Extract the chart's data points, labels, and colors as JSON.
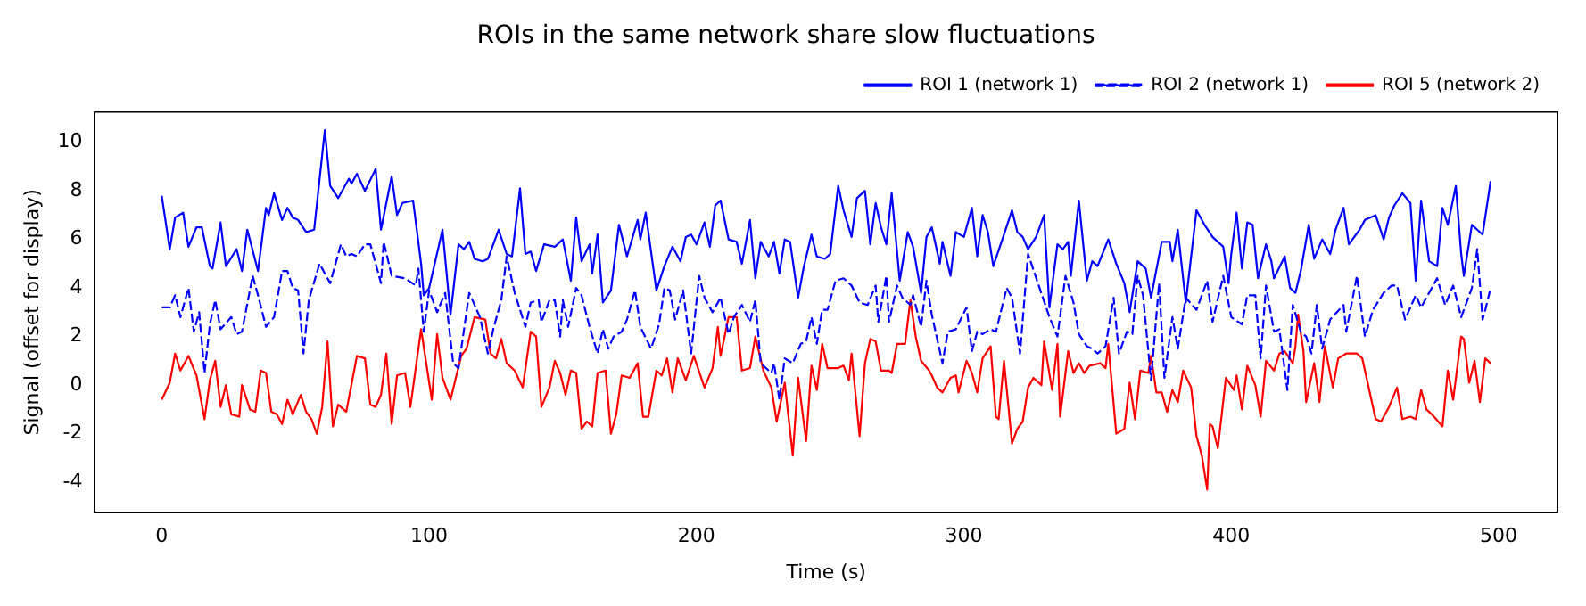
{
  "chart_data": {
    "type": "line",
    "title": "ROIs in the same network share slow fluctuations",
    "xlabel": "Time (s)",
    "ylabel": "Signal (offset for display)",
    "xlim": [
      -25,
      522
    ],
    "xticks": [
      0,
      100,
      200,
      300,
      400,
      500
    ],
    "ylim": [
      -5.25,
      11.25
    ],
    "yticks": [
      -4,
      -2,
      0,
      2,
      4,
      6,
      8,
      10
    ],
    "legend": "top right",
    "marker": "none",
    "series": [
      {
        "name": "ROI 1 (network 1)",
        "color": "#0000ff",
        "line_style": "solid",
        "x": [
          0,
          3,
          5,
          8,
          10,
          13,
          15,
          18,
          19,
          22,
          24,
          28,
          30,
          32,
          36,
          39,
          40,
          42,
          45,
          47,
          49,
          51,
          54,
          57,
          61,
          63,
          66,
          70,
          71,
          73,
          76,
          80,
          82,
          86,
          88,
          90,
          94,
          97,
          98,
          100,
          105,
          108,
          111,
          113,
          115,
          117,
          120,
          122,
          124,
          126,
          129,
          131,
          134,
          136,
          138,
          140,
          143,
          147,
          150,
          153,
          155,
          157,
          160,
          161,
          163,
          165,
          168,
          171,
          174,
          178,
          179,
          181,
          185,
          188,
          191,
          194,
          196,
          198,
          200,
          203,
          205,
          207,
          209,
          212,
          215,
          217,
          220,
          222,
          224,
          227,
          229,
          231,
          233,
          235,
          238,
          240,
          243,
          245,
          248,
          250,
          253,
          255,
          258,
          260,
          263,
          265,
          267,
          269,
          271,
          273,
          276,
          279,
          281,
          284,
          286,
          288,
          291,
          292,
          295,
          297,
          300,
          303,
          305,
          307,
          309,
          311,
          315,
          318,
          320,
          322,
          324,
          327,
          330,
          332,
          335,
          337,
          339,
          340,
          343,
          346,
          348,
          350,
          354,
          357,
          360,
          362,
          365,
          368,
          370,
          374,
          377,
          378,
          380,
          383,
          387,
          390,
          393,
          397,
          399,
          400,
          402,
          404,
          406,
          408,
          410,
          413,
          415,
          416,
          420,
          422,
          424,
          426,
          429,
          431,
          434,
          437,
          439,
          442,
          444,
          448,
          450,
          454,
          457,
          459,
          461,
          464,
          467,
          469,
          471,
          474,
          477,
          479,
          481,
          484,
          486,
          487,
          490,
          492,
          494,
          497
        ],
        "values": [
          7.8,
          5.6,
          6.9,
          7.1,
          5.7,
          6.5,
          6.5,
          4.9,
          4.8,
          6.7,
          4.9,
          5.6,
          4.7,
          6.4,
          4.7,
          7.3,
          7.0,
          7.9,
          6.8,
          7.3,
          6.9,
          6.8,
          6.3,
          6.4,
          10.5,
          8.2,
          7.7,
          8.5,
          8.3,
          8.7,
          8.0,
          8.9,
          6.4,
          8.6,
          7.0,
          7.5,
          7.6,
          5.0,
          3.7,
          4.0,
          6.4,
          2.9,
          5.8,
          5.6,
          5.9,
          5.2,
          5.1,
          5.2,
          5.8,
          6.4,
          5.4,
          5.3,
          8.1,
          5.4,
          5.5,
          4.7,
          5.8,
          5.7,
          6.0,
          4.3,
          6.9,
          5.1,
          5.8,
          4.6,
          6.2,
          3.4,
          3.9,
          6.6,
          5.3,
          6.8,
          6.0,
          7.1,
          3.9,
          4.9,
          5.7,
          5.1,
          6.1,
          6.2,
          5.8,
          6.7,
          5.7,
          7.4,
          7.6,
          6.0,
          5.9,
          5.0,
          6.8,
          4.4,
          5.9,
          5.3,
          5.9,
          4.6,
          6.0,
          5.9,
          3.6,
          4.8,
          6.2,
          5.3,
          5.2,
          5.4,
          8.2,
          7.2,
          6.1,
          7.7,
          8.0,
          5.8,
          7.5,
          6.5,
          5.8,
          7.9,
          4.3,
          6.3,
          5.7,
          3.8,
          6.1,
          6.5,
          5.0,
          5.9,
          4.5,
          6.3,
          6.1,
          7.3,
          5.3,
          7.0,
          6.3,
          4.9,
          6.2,
          7.2,
          6.3,
          6.1,
          5.6,
          6.1,
          7.0,
          3.2,
          5.8,
          5.6,
          5.9,
          4.5,
          7.6,
          4.3,
          5.1,
          4.9,
          6.0,
          5.0,
          4.2,
          3.0,
          5.1,
          4.8,
          3.6,
          5.9,
          5.9,
          5.1,
          6.4,
          3.4,
          7.2,
          6.6,
          6.1,
          5.7,
          4.2,
          5.4,
          7.1,
          4.8,
          6.7,
          6.6,
          4.4,
          5.8,
          5.1,
          4.4,
          5.3,
          4.0,
          3.8,
          4.7,
          6.6,
          5.2,
          6.0,
          5.4,
          6.4,
          7.3,
          5.8,
          6.4,
          6.8,
          7.0,
          6.0,
          6.9,
          7.4,
          7.9,
          7.5,
          4.3,
          7.6,
          5.1,
          4.9,
          7.3,
          6.6,
          8.2,
          5.4,
          4.5,
          6.6,
          6.4,
          6.2,
          8.4
        ]
      },
      {
        "name": "ROI 2 (network 1)",
        "color": "#0000ff",
        "line_style": "dashed",
        "x": [
          0,
          3,
          5,
          7,
          10,
          12,
          14,
          16,
          18,
          20,
          22,
          26,
          28,
          30,
          34,
          36,
          39,
          42,
          45,
          47,
          49,
          51,
          53,
          55,
          59,
          63,
          67,
          69,
          71,
          73,
          76,
          78,
          82,
          83,
          86,
          91,
          95,
          96,
          98,
          100,
          103,
          106,
          109,
          111,
          115,
          119,
          122,
          124,
          127,
          129,
          132,
          136,
          138,
          141,
          142,
          145,
          147,
          149,
          150,
          152,
          155,
          157,
          160,
          163,
          165,
          167,
          169,
          172,
          174,
          177,
          179,
          183,
          186,
          188,
          190,
          192,
          195,
          198,
          201,
          203,
          206,
          209,
          212,
          214,
          217,
          220,
          222,
          224,
          228,
          229,
          231,
          233,
          236,
          239,
          241,
          243,
          245,
          247,
          249,
          252,
          255,
          258,
          261,
          264,
          267,
          268,
          271,
          272,
          275,
          277,
          280,
          281,
          284,
          286,
          288,
          292,
          294,
          297,
          301,
          303,
          305,
          307,
          310,
          312,
          316,
          318,
          321,
          324,
          328,
          332,
          335,
          338,
          341,
          343,
          346,
          348,
          350,
          353,
          356,
          358,
          361,
          363,
          365,
          367,
          370,
          373,
          375,
          378,
          380,
          383,
          387,
          391,
          393,
          397,
          400,
          404,
          406,
          409,
          411,
          413,
          416,
          418,
          421,
          423,
          426,
          428,
          430,
          432,
          434,
          437,
          442,
          443,
          447,
          450,
          453,
          457,
          460,
          462,
          465,
          469,
          471,
          477,
          480,
          483,
          486,
          490,
          492,
          494,
          495,
          497
        ],
        "values": [
          3.2,
          3.2,
          3.7,
          2.8,
          4.0,
          2.2,
          3.0,
          0.5,
          2.5,
          3.5,
          2.3,
          2.8,
          2.1,
          2.2,
          4.5,
          3.7,
          2.4,
          2.8,
          4.7,
          4.7,
          4.0,
          3.9,
          1.3,
          3.5,
          5.0,
          4.2,
          5.8,
          5.3,
          5.4,
          5.3,
          5.8,
          5.8,
          4.2,
          5.9,
          4.5,
          4.4,
          4.1,
          4.8,
          2.2,
          3.9,
          3.0,
          3.8,
          0.9,
          0.7,
          3.8,
          2.8,
          1.3,
          2.3,
          3.5,
          5.3,
          3.8,
          2.4,
          3.4,
          3.5,
          2.6,
          3.5,
          3.5,
          2.0,
          3.5,
          2.4,
          4.0,
          3.7,
          2.4,
          1.3,
          2.3,
          1.5,
          2.0,
          2.2,
          2.7,
          3.9,
          2.4,
          1.5,
          2.5,
          4.0,
          3.9,
          2.7,
          3.9,
          1.3,
          4.5,
          3.6,
          3.0,
          3.6,
          2.1,
          2.8,
          3.3,
          2.6,
          3.5,
          0.9,
          0.5,
          0.9,
          -0.6,
          1.1,
          0.9,
          1.7,
          1.8,
          2.8,
          1.7,
          3.1,
          3.1,
          4.3,
          4.4,
          4.1,
          3.4,
          3.3,
          4.1,
          2.6,
          4.5,
          2.6,
          4.1,
          3.6,
          3.3,
          3.7,
          2.4,
          4.3,
          2.9,
          0.9,
          2.2,
          2.3,
          3.2,
          1.4,
          2.2,
          2.1,
          2.3,
          2.2,
          4.0,
          3.6,
          1.3,
          5.4,
          4.1,
          2.8,
          2.0,
          4.5,
          3.4,
          2.1,
          1.6,
          1.5,
          1.3,
          1.6,
          3.6,
          1.3,
          2.2,
          2.1,
          4.5,
          3.7,
          0.2,
          4.2,
          0.3,
          2.8,
          1.5,
          3.6,
          3.1,
          4.3,
          2.6,
          4.5,
          2.8,
          2.5,
          3.7,
          3.7,
          1.1,
          4.1,
          2.2,
          2.3,
          -0.2,
          3.3,
          2.2,
          2.0,
          1.3,
          3.3,
          1.5,
          2.7,
          3.3,
          2.2,
          4.5,
          2.0,
          3.1,
          3.8,
          4.1,
          4.1,
          2.7,
          3.7,
          3.2,
          4.4,
          3.3,
          4.1,
          2.8,
          4.0,
          5.6,
          2.7,
          3.1,
          4.0
        ]
      },
      {
        "name": "ROI 5 (network 2)",
        "color": "#ff0000",
        "line_style": "solid",
        "x": [
          0,
          3,
          5,
          7,
          10,
          13,
          16,
          18,
          20,
          22,
          24,
          26,
          29,
          30,
          33,
          35,
          37,
          39,
          41,
          43,
          45,
          47,
          49,
          52,
          54,
          56,
          58,
          60,
          62,
          64,
          66,
          69,
          73,
          76,
          78,
          80,
          82,
          84,
          86,
          88,
          91,
          93,
          97,
          101,
          103,
          105,
          108,
          112,
          114,
          117,
          121,
          123,
          125,
          127,
          129,
          132,
          135,
          138,
          140,
          142,
          145,
          147,
          149,
          151,
          153,
          155,
          157,
          159,
          161,
          163,
          166,
          168,
          170,
          172,
          175,
          178,
          180,
          182,
          185,
          187,
          189,
          191,
          193,
          196,
          199,
          203,
          206,
          208,
          209,
          212,
          215,
          217,
          220,
          222,
          225,
          228,
          230,
          233,
          236,
          238,
          241,
          243,
          245,
          247,
          249,
          253,
          255,
          257,
          258,
          261,
          263,
          265,
          267,
          269,
          272,
          273,
          275,
          278,
          280,
          282,
          284,
          287,
          288,
          290,
          292,
          295,
          297,
          298,
          301,
          303,
          305,
          307,
          310,
          312,
          313,
          315,
          318,
          320,
          322,
          324,
          326,
          329,
          330,
          333,
          335,
          336,
          339,
          341,
          343,
          345,
          347,
          351,
          353,
          354,
          357,
          360,
          362,
          364,
          366,
          369,
          370,
          372,
          374,
          376,
          378,
          380,
          382,
          385,
          387,
          389,
          391,
          392,
          393,
          395,
          398,
          401,
          402,
          404,
          406,
          409,
          411,
          413,
          416,
          418,
          420,
          423,
          424,
          425,
          427,
          428,
          431,
          433,
          435,
          438,
          440,
          443,
          447,
          449,
          454,
          456,
          459,
          462,
          464,
          467,
          469,
          471,
          473,
          475,
          479,
          481,
          483,
          486,
          487,
          489,
          491,
          493,
          495,
          497
        ],
        "values": [
          -0.6,
          0.1,
          1.3,
          0.6,
          1.2,
          0.4,
          -1.4,
          0.2,
          1.0,
          -0.9,
          0.0,
          -1.2,
          -1.3,
          0.0,
          -1.0,
          -1.1,
          0.6,
          0.5,
          -1.1,
          -1.2,
          -1.6,
          -0.6,
          -1.2,
          -0.4,
          -1.1,
          -1.4,
          -2.0,
          -0.9,
          1.8,
          -1.7,
          -0.8,
          -1.1,
          1.2,
          1.1,
          -0.8,
          -0.9,
          -0.4,
          1.3,
          -1.6,
          0.4,
          0.5,
          -0.9,
          2.3,
          -0.6,
          2.1,
          0.3,
          -0.6,
          1.2,
          1.5,
          2.8,
          2.7,
          1.3,
          1.1,
          1.9,
          0.9,
          0.6,
          -0.1,
          2.2,
          2.0,
          -0.9,
          -0.1,
          1.0,
          0.5,
          -0.4,
          0.6,
          0.5,
          -1.8,
          -1.5,
          -1.7,
          0.5,
          0.6,
          -2.0,
          -1.2,
          0.4,
          0.3,
          0.9,
          -1.3,
          -1.3,
          0.6,
          0.4,
          1.1,
          -0.3,
          1.1,
          0.2,
          1.2,
          -0.1,
          0.7,
          2.4,
          1.2,
          2.8,
          2.8,
          0.6,
          0.7,
          2.0,
          0.6,
          -0.1,
          -1.5,
          0.1,
          -2.9,
          0.3,
          -2.3,
          0.8,
          -0.2,
          1.7,
          0.7,
          0.7,
          0.8,
          0.2,
          1.3,
          -2.1,
          0.9,
          1.9,
          1.8,
          0.6,
          0.6,
          0.5,
          1.7,
          1.7,
          3.5,
          2.0,
          1.0,
          0.6,
          0.4,
          -0.1,
          -0.3,
          0.3,
          0.4,
          -0.3,
          1.0,
          0.5,
          -0.3,
          1.1,
          1.6,
          -1.3,
          -1.4,
          1.0,
          -2.4,
          -1.8,
          -1.5,
          -0.1,
          0.3,
          0.0,
          1.8,
          -0.2,
          1.7,
          -1.3,
          1.4,
          0.5,
          0.9,
          0.5,
          0.8,
          0.9,
          0.7,
          1.7,
          -2.0,
          -1.8,
          0.1,
          -1.4,
          0.6,
          0.5,
          1.2,
          -0.3,
          -0.3,
          -1.1,
          -0.2,
          -0.7,
          0.6,
          -0.1,
          -2.1,
          -2.9,
          -4.3,
          -1.6,
          -1.7,
          -2.6,
          0.3,
          -0.2,
          0.4,
          -1.0,
          0.8,
          0.0,
          -1.3,
          1.0,
          0.6,
          1.3,
          1.4,
          0.9,
          1.6,
          2.9,
          1.4,
          -0.7,
          0.9,
          -0.7,
          1.6,
          -0.1,
          1.1,
          1.3,
          1.3,
          1.1,
          -1.4,
          -1.5,
          -0.9,
          -0.1,
          -1.4,
          -1.3,
          -1.4,
          -0.2,
          -1.0,
          -1.2,
          -1.7,
          0.6,
          -0.6,
          2.0,
          1.9,
          0.1,
          1.0,
          -0.7,
          1.1,
          0.9
        ]
      }
    ]
  }
}
